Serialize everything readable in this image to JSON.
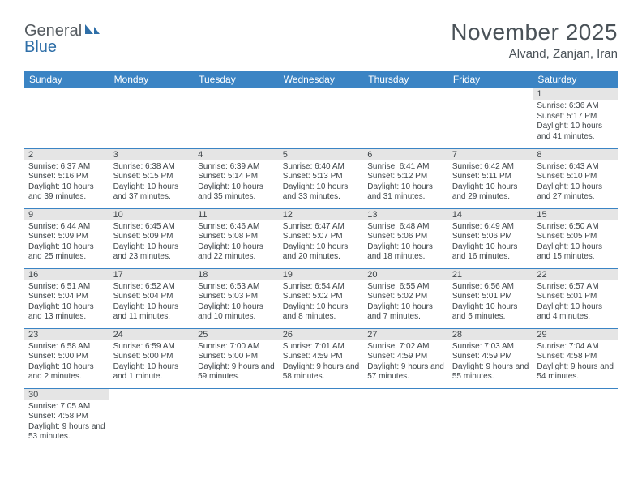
{
  "brand": {
    "name1": "General",
    "name2": "Blue"
  },
  "title": "November 2025",
  "location": "Alvand, Zanjan, Iran",
  "style": {
    "header_bg": "#3b84c4",
    "header_text": "#ffffff",
    "daynum_bg": "#e5e5e5",
    "text_color": "#3f4549",
    "border_color": "#3b84c4",
    "title_color": "#4a5258",
    "title_fontsize": 28,
    "location_fontsize": 15,
    "dayhead_fontsize": 12,
    "body_fontsize": 10
  },
  "weekdays": [
    "Sunday",
    "Monday",
    "Tuesday",
    "Wednesday",
    "Thursday",
    "Friday",
    "Saturday"
  ],
  "weeks": [
    [
      null,
      null,
      null,
      null,
      null,
      null,
      {
        "n": "1",
        "sr": "Sunrise: 6:36 AM",
        "ss": "Sunset: 5:17 PM",
        "dl": "Daylight: 10 hours and 41 minutes."
      }
    ],
    [
      {
        "n": "2",
        "sr": "Sunrise: 6:37 AM",
        "ss": "Sunset: 5:16 PM",
        "dl": "Daylight: 10 hours and 39 minutes."
      },
      {
        "n": "3",
        "sr": "Sunrise: 6:38 AM",
        "ss": "Sunset: 5:15 PM",
        "dl": "Daylight: 10 hours and 37 minutes."
      },
      {
        "n": "4",
        "sr": "Sunrise: 6:39 AM",
        "ss": "Sunset: 5:14 PM",
        "dl": "Daylight: 10 hours and 35 minutes."
      },
      {
        "n": "5",
        "sr": "Sunrise: 6:40 AM",
        "ss": "Sunset: 5:13 PM",
        "dl": "Daylight: 10 hours and 33 minutes."
      },
      {
        "n": "6",
        "sr": "Sunrise: 6:41 AM",
        "ss": "Sunset: 5:12 PM",
        "dl": "Daylight: 10 hours and 31 minutes."
      },
      {
        "n": "7",
        "sr": "Sunrise: 6:42 AM",
        "ss": "Sunset: 5:11 PM",
        "dl": "Daylight: 10 hours and 29 minutes."
      },
      {
        "n": "8",
        "sr": "Sunrise: 6:43 AM",
        "ss": "Sunset: 5:10 PM",
        "dl": "Daylight: 10 hours and 27 minutes."
      }
    ],
    [
      {
        "n": "9",
        "sr": "Sunrise: 6:44 AM",
        "ss": "Sunset: 5:09 PM",
        "dl": "Daylight: 10 hours and 25 minutes."
      },
      {
        "n": "10",
        "sr": "Sunrise: 6:45 AM",
        "ss": "Sunset: 5:09 PM",
        "dl": "Daylight: 10 hours and 23 minutes."
      },
      {
        "n": "11",
        "sr": "Sunrise: 6:46 AM",
        "ss": "Sunset: 5:08 PM",
        "dl": "Daylight: 10 hours and 22 minutes."
      },
      {
        "n": "12",
        "sr": "Sunrise: 6:47 AM",
        "ss": "Sunset: 5:07 PM",
        "dl": "Daylight: 10 hours and 20 minutes."
      },
      {
        "n": "13",
        "sr": "Sunrise: 6:48 AM",
        "ss": "Sunset: 5:06 PM",
        "dl": "Daylight: 10 hours and 18 minutes."
      },
      {
        "n": "14",
        "sr": "Sunrise: 6:49 AM",
        "ss": "Sunset: 5:06 PM",
        "dl": "Daylight: 10 hours and 16 minutes."
      },
      {
        "n": "15",
        "sr": "Sunrise: 6:50 AM",
        "ss": "Sunset: 5:05 PM",
        "dl": "Daylight: 10 hours and 15 minutes."
      }
    ],
    [
      {
        "n": "16",
        "sr": "Sunrise: 6:51 AM",
        "ss": "Sunset: 5:04 PM",
        "dl": "Daylight: 10 hours and 13 minutes."
      },
      {
        "n": "17",
        "sr": "Sunrise: 6:52 AM",
        "ss": "Sunset: 5:04 PM",
        "dl": "Daylight: 10 hours and 11 minutes."
      },
      {
        "n": "18",
        "sr": "Sunrise: 6:53 AM",
        "ss": "Sunset: 5:03 PM",
        "dl": "Daylight: 10 hours and 10 minutes."
      },
      {
        "n": "19",
        "sr": "Sunrise: 6:54 AM",
        "ss": "Sunset: 5:02 PM",
        "dl": "Daylight: 10 hours and 8 minutes."
      },
      {
        "n": "20",
        "sr": "Sunrise: 6:55 AM",
        "ss": "Sunset: 5:02 PM",
        "dl": "Daylight: 10 hours and 7 minutes."
      },
      {
        "n": "21",
        "sr": "Sunrise: 6:56 AM",
        "ss": "Sunset: 5:01 PM",
        "dl": "Daylight: 10 hours and 5 minutes."
      },
      {
        "n": "22",
        "sr": "Sunrise: 6:57 AM",
        "ss": "Sunset: 5:01 PM",
        "dl": "Daylight: 10 hours and 4 minutes."
      }
    ],
    [
      {
        "n": "23",
        "sr": "Sunrise: 6:58 AM",
        "ss": "Sunset: 5:00 PM",
        "dl": "Daylight: 10 hours and 2 minutes."
      },
      {
        "n": "24",
        "sr": "Sunrise: 6:59 AM",
        "ss": "Sunset: 5:00 PM",
        "dl": "Daylight: 10 hours and 1 minute."
      },
      {
        "n": "25",
        "sr": "Sunrise: 7:00 AM",
        "ss": "Sunset: 5:00 PM",
        "dl": "Daylight: 9 hours and 59 minutes."
      },
      {
        "n": "26",
        "sr": "Sunrise: 7:01 AM",
        "ss": "Sunset: 4:59 PM",
        "dl": "Daylight: 9 hours and 58 minutes."
      },
      {
        "n": "27",
        "sr": "Sunrise: 7:02 AM",
        "ss": "Sunset: 4:59 PM",
        "dl": "Daylight: 9 hours and 57 minutes."
      },
      {
        "n": "28",
        "sr": "Sunrise: 7:03 AM",
        "ss": "Sunset: 4:59 PM",
        "dl": "Daylight: 9 hours and 55 minutes."
      },
      {
        "n": "29",
        "sr": "Sunrise: 7:04 AM",
        "ss": "Sunset: 4:58 PM",
        "dl": "Daylight: 9 hours and 54 minutes."
      }
    ],
    [
      {
        "n": "30",
        "sr": "Sunrise: 7:05 AM",
        "ss": "Sunset: 4:58 PM",
        "dl": "Daylight: 9 hours and 53 minutes."
      },
      null,
      null,
      null,
      null,
      null,
      null
    ]
  ]
}
